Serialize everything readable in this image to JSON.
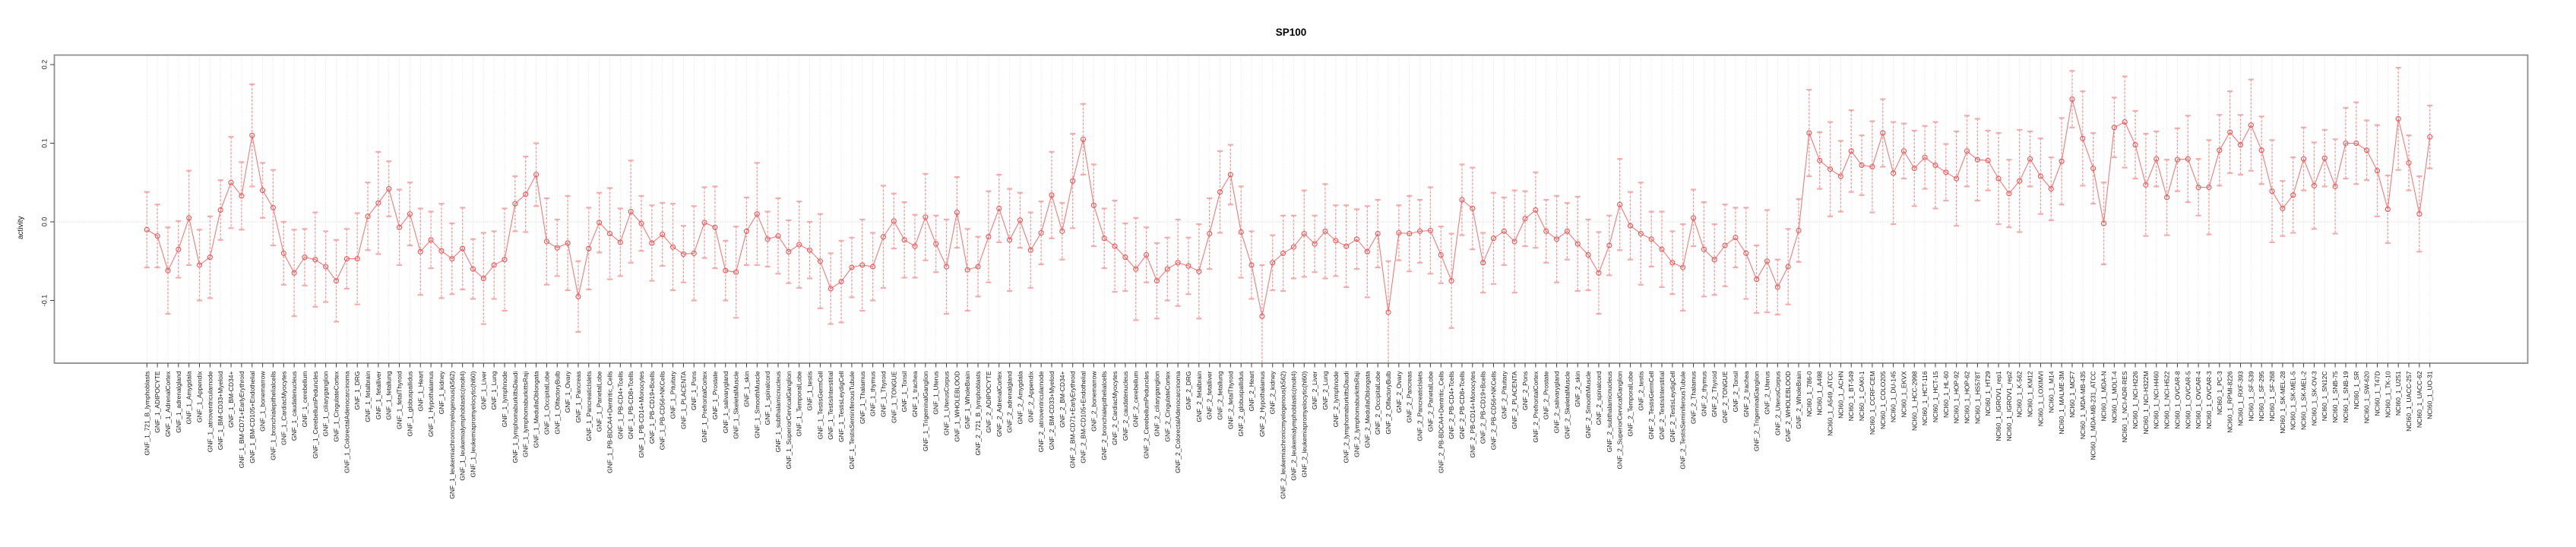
{
  "chart_data": {
    "type": "line",
    "title": "SP100",
    "ylabel": "activity",
    "xlabel": "",
    "legend": "none",
    "grid": "vertical dotted gridline per category; horizontal dotted line at 0 only",
    "ylim": [
      -0.18,
      0.213
    ],
    "yticks": [
      {
        "value": 0.2,
        "label": "0.2"
      },
      {
        "value": 0.1,
        "label": "0.1"
      },
      {
        "value": 0.0,
        "label": "0.0"
      },
      {
        "value": -0.1,
        "label": "-0.1"
      }
    ],
    "point_style": "open circles with dashed error-bar stems and capped whiskers, connected by thin line",
    "categories": [
      "GNF_1_721_B_lymphoblasts",
      "GNF_1_ADIPOCYTE",
      "GNF_1_AdrenalCortex",
      "GNF_1_adrenalgland",
      "GNF_1_Amygdala",
      "GNF_1_Appendix",
      "GNF_1_atrioventricularnode",
      "GNF_1_BM-CD33+Myeloid",
      "GNF_1_BM-CD34+",
      "GNF_1_BM-CD71+EarlyErythroid",
      "GNF_1_BM-CD105+Endothelial",
      "GNF_1_bonemarrow",
      "GNF_1_bronchialepithelialcells",
      "GNF_1_CardiacMyocytes",
      "GNF_1_caudatenucleus",
      "GNF_1_cerebellum",
      "GNF_1_CerebellumPeduncles",
      "GNF_1_ciliaryganglion",
      "GNF_1_CingulateCortex",
      "GNF_1_ColorectalAdenocarcinoma",
      "GNF_1_DRG",
      "GNF_1_fetalbrain",
      "GNF_1_fetalliver",
      "GNF_1_fetallung",
      "GNF_1_fetalThyroid",
      "GNF_1_globuspallidus",
      "GNF_1_Heart",
      "GNF_1_Hypothalamus",
      "GNF_1_kidney",
      "GNF_1_leukemiachronicmyelogenous(k562)",
      "GNF_1_leukemialymphoblastic(molt4)",
      "GNF_1_leukemiapromyelocytic(hl60)",
      "GNF_1_Liver",
      "GNF_1_Lung",
      "GNF_1_lymphnode",
      "GNF_1_lymphomaburkittsDaudi",
      "GNF_1_lymphomaburkittsRaji",
      "GNF_1_MedullaOblongata",
      "GNF_1_OccipitalLobe",
      "GNF_1_OlfactoryBulb",
      "GNF_1_Ovary",
      "GNF_1_Pancreas",
      "GNF_1_PancreaticIslets",
      "GNF_1_ParietalLobe",
      "GNF_1_PB-BDCA4+Dentritic_Cells",
      "GNF_1_PB-CD4+Tcells",
      "GNF_1_PB-CD8+Tcells",
      "GNF_1_PB-CD14+Monocytes",
      "GNF_1_PB-CD19+Bcells",
      "GNF_1_PB-CD56+NKCells",
      "GNF_1_Pituitary",
      "GNF_1_PLACENTA",
      "GNF_1_Pons",
      "GNF_1_PrefrontalCortex",
      "GNF_1_Prostate",
      "GNF_1_salivarygland",
      "GNF_1_SkeletalMuscle",
      "GNF_1_skin",
      "GNF_1_SmoothMuscle",
      "GNF_1_spinalcord",
      "GNF_1_subthalamicnucleus",
      "GNF_1_SuperiorCervicalGanglion",
      "GNF_1_TemporalLobe",
      "GNF_1_testis",
      "GNF_1_TestisGermCell",
      "GNF_1_TestisInterstitial",
      "GNF_1_TestisLeydigCell",
      "GNF_1_TestisSeminiferousTubule",
      "GNF_1_Thalamus",
      "GNF_1_thymus",
      "GNF_1_Thyroid",
      "GNF_1_TONGUE",
      "GNF_1_Tonsil",
      "GNF_1_trachea",
      "GNF_1_TrigeminalGanglion",
      "GNF_1_Uterus",
      "GNF_1_UterusCorpus",
      "GNF_1_WHOLEBLOOD",
      "GNF_1_WholeBrain",
      "GNF_2_721_B_lymphoblasts",
      "GNF_2_ADIPOCYTE",
      "GNF_2_AdrenalCortex",
      "GNF_2_adrenalgland",
      "GNF_2_Amygdala",
      "GNF_2_Appendix",
      "GNF_2_atrioventricularnode",
      "GNF_2_BM-CD33+Myeloid",
      "GNF_2_BM-CD34+",
      "GNF_2_BM-CD71+EarlyErythroid",
      "GNF_2_BM-CD105+Endothelial",
      "GNF_2_bonemarrow",
      "GNF_2_bronchialepithelialcells",
      "GNF_2_CardiacMyocytes",
      "GNF_2_caudatenucleus",
      "GNF_2_cerebellum",
      "GNF_2_CerebellumPeduncles",
      "GNF_2_ciliaryganglion",
      "GNF_2_CingulateCortex",
      "GNF_2_ColorectalAdenocarcinoma",
      "GNF_2_DRG",
      "GNF_2_fetalbrain",
      "GNF_2_fetalliver",
      "GNF_2_fetallung",
      "GNF_2_fetalThyroid",
      "GNF_2_globuspallidus",
      "GNF_2_Heart",
      "GNF_2_Hypothalamus",
      "GNF_2_kidney",
      "GNF_2_leukemiachronicmyelogenous(k562)",
      "GNF_2_leukemialymphoblastic(molt4)",
      "GNF_2_leukemiapromyelocytic(hl60)",
      "GNF_2_Liver",
      "GNF_2_Lung",
      "GNF_2_lymphnode",
      "GNF_2_lymphomaburkittsDaudi",
      "GNF_2_lymphomaburkittsRaji",
      "GNF_2_MedullaOblongata",
      "GNF_2_OccipitalLobe",
      "GNF_2_OlfactoryBulb",
      "GNF_2_Ovary",
      "GNF_2_Pancreas",
      "GNF_2_PancreaticIslets",
      "GNF_2_ParietalLobe",
      "GNF_2_PB-BDCA4+Dentritic_Cells",
      "GNF_2_PB-CD4+Tcells",
      "GNF_2_PB-CD8+Tcells",
      "GNF_2_PB-CD14+Monocytes",
      "GNF_2_PB-CD19+Bcells",
      "GNF_2_PB-CD56+NKCells",
      "GNF_2_Pituitary",
      "GNF_2_PLACENTA",
      "GNF_2_Pons",
      "GNF_2_PrefrontalCortex",
      "GNF_2_Prostate",
      "GNF_2_salivarygland",
      "GNF_2_SkeletalMuscle",
      "GNF_2_skin",
      "GNF_2_SmoothMuscle",
      "GNF_2_spinalcord",
      "GNF_2_subthalamicnucleus",
      "GNF_2_SuperiorCervicalGanglion",
      "GNF_2_TemporalLobe",
      "GNF_2_testis",
      "GNF_2_TestisGermCell",
      "GNF_2_TestisInterstitial",
      "GNF_2_TestisLeydigCell",
      "GNF_2_TestisSeminiferousTubule",
      "GNF_2_Thalamus",
      "GNF_2_thymus",
      "GNF_2_Thyroid",
      "GNF_2_TONGUE",
      "GNF_2_Tonsil",
      "GNF_2_trachea",
      "GNF_2_TrigeminalGanglion",
      "GNF_2_Uterus",
      "GNF_2_UterusCorpus",
      "GNF_2_WHOLEBLOOD",
      "GNF_2_WholeBrain",
      "NCI60_1_786-0",
      "NCI60_1_A498",
      "NCI60_1_A549_ATCC",
      "NCI60_1_ACHN",
      "NCI60_1_BT-549",
      "NCI60_1_CAKI-1",
      "NCI60_1_CCRF-CEM",
      "NCI60_1_COLO205",
      "NCI60_1_DU-145",
      "NCI60_1_EKVX",
      "NCI60_1_HCC-2998",
      "NCI60_1_HCT-116",
      "NCI60_1_HCT-15",
      "NCI60_1_HL-60",
      "NCI60_1_HOP-92",
      "NCI60_1_HOP-62",
      "NCI60_1_HS578T",
      "NCI60_1_HT29",
      "NCI60_1_IGROV1_rep1",
      "NCI60_1_IGROV1_rep2",
      "NCI60_1_K-562",
      "NCI60_1_KM12",
      "NCI60_1_LOXIMVI",
      "NCI60_1_M14",
      "NCI60_1_MALME-3M",
      "NCI60_1_MCF7",
      "NCI60_1_MDA-MB-435",
      "NCI60_1_MDA-MB-231_ATCC",
      "NCI60_1_MDA-N",
      "NCI60_1_MOLT-4",
      "NCI60_1_NCI-ADR-RES",
      "NCI60_1_NCI-H226",
      "NCI60_1_NCI-H322M",
      "NCI60_1_NCI-H460",
      "NCI60_1_NCI-H522",
      "NCI60_1_OVCAR-8",
      "NCI60_1_OVCAR-5",
      "NCI60_1_OVCAR-4",
      "NCI60_1_OVCAR-3",
      "NCI60_1_PC-3",
      "NCI60_1_RPMI-8226",
      "NCI60_1_RXF-393",
      "NCI60_1_SF-539",
      "NCI60_1_SF-295",
      "NCI60_1_SF-268",
      "NCI60_1_SK-MEL-28",
      "NCI60_1_SK-MEL-5",
      "NCI60_1_SK-MEL-2",
      "NCI60_1_SK-OV-3",
      "NCI60_1_SN12C",
      "NCI60_1_SNB-75",
      "NCI60_1_SNB-19",
      "NCI60_1_SR",
      "NCI60_1_SW-620",
      "NCI60_1_T47D",
      "NCI60_1_TK-10",
      "NCI60_1_U251",
      "NCI60_1_UACC-257",
      "NCI60_1_UACC-62",
      "NCI60_1_UO-31"
    ],
    "values": [
      -0.01,
      -0.018,
      -0.062,
      -0.035,
      0.005,
      -0.055,
      -0.045,
      0.015,
      0.05,
      0.033,
      0.11,
      0.04,
      0.018,
      -0.04,
      -0.065,
      -0.045,
      -0.048,
      -0.057,
      -0.075,
      -0.047,
      -0.047,
      0.007,
      0.024,
      0.042,
      -0.007,
      0.01,
      -0.038,
      -0.023,
      -0.037,
      -0.047,
      -0.034,
      -0.06,
      -0.072,
      -0.055,
      -0.048,
      0.023,
      0.035,
      0.06,
      -0.025,
      -0.033,
      -0.027,
      -0.095,
      -0.034,
      -0.001,
      -0.015,
      -0.026,
      0.013,
      -0.002,
      -0.027,
      -0.016,
      -0.032,
      -0.041,
      -0.04,
      -0.001,
      -0.007,
      -0.062,
      -0.064,
      -0.012,
      0.01,
      -0.022,
      -0.018,
      -0.038,
      -0.029,
      -0.036,
      -0.05,
      -0.085,
      -0.076,
      -0.058,
      -0.055,
      -0.057,
      -0.019,
      0.001,
      -0.023,
      -0.031,
      0.006,
      -0.028,
      -0.057,
      0.012,
      -0.061,
      -0.057,
      -0.019,
      0.017,
      -0.023,
      0.002,
      -0.036,
      -0.014,
      0.034,
      -0.012,
      0.052,
      0.105,
      0.021,
      -0.021,
      -0.031,
      -0.045,
      -0.06,
      -0.042,
      -0.075,
      -0.06,
      -0.052,
      -0.056,
      -0.063,
      -0.015,
      0.038,
      0.06,
      -0.013,
      -0.055,
      -0.12,
      -0.052,
      -0.04,
      -0.032,
      -0.015,
      -0.028,
      -0.012,
      -0.024,
      -0.031,
      -0.022,
      -0.038,
      -0.015,
      -0.115,
      -0.014,
      -0.015,
      -0.012,
      -0.011,
      -0.042,
      -0.075,
      0.028,
      0.017,
      -0.052,
      -0.021,
      -0.012,
      -0.025,
      0.004,
      0.015,
      -0.012,
      -0.022,
      -0.012,
      -0.028,
      -0.042,
      -0.065,
      -0.03,
      0.022,
      -0.005,
      -0.015,
      -0.022,
      -0.035,
      -0.052,
      -0.058,
      0.005,
      -0.035,
      -0.048,
      -0.03,
      -0.02,
      -0.04,
      -0.073,
      -0.05,
      -0.083,
      -0.057,
      -0.011,
      0.113,
      0.078,
      0.067,
      0.058,
      0.09,
      0.072,
      0.07,
      0.113,
      0.062,
      0.09,
      0.068,
      0.082,
      0.072,
      0.063,
      0.055,
      0.09,
      0.079,
      0.078,
      0.055,
      0.036,
      0.052,
      0.08,
      0.058,
      0.042,
      0.077,
      0.156,
      0.106,
      0.068,
      -0.002,
      0.12,
      0.127,
      0.098,
      0.047,
      0.08,
      0.031,
      0.079,
      0.08,
      0.044,
      0.044,
      0.091,
      0.114,
      0.098,
      0.123,
      0.091,
      0.039,
      0.017,
      0.034,
      0.08,
      0.046,
      0.081,
      0.045,
      0.1,
      0.1,
      0.091,
      0.065,
      0.016,
      0.131,
      0.075,
      0.01,
      0.108
    ],
    "errors": [
      0.048,
      0.04,
      0.055,
      0.036,
      0.06,
      0.045,
      0.052,
      0.038,
      0.058,
      0.043,
      0.065,
      0.035,
      0.048,
      0.04,
      0.055,
      0.036,
      0.06,
      0.045,
      0.052,
      0.038,
      0.058,
      0.043,
      0.065,
      0.035,
      0.048,
      0.04,
      0.055,
      0.036,
      0.06,
      0.045,
      0.052,
      0.038,
      0.058,
      0.043,
      0.065,
      0.035,
      0.048,
      0.04,
      0.055,
      0.036,
      0.06,
      0.045,
      0.052,
      0.038,
      0.058,
      0.043,
      0.065,
      0.035,
      0.048,
      0.04,
      0.055,
      0.036,
      0.06,
      0.045,
      0.052,
      0.038,
      0.058,
      0.043,
      0.065,
      0.035,
      0.048,
      0.04,
      0.055,
      0.036,
      0.06,
      0.045,
      0.052,
      0.038,
      0.058,
      0.043,
      0.065,
      0.035,
      0.048,
      0.04,
      0.055,
      0.036,
      0.06,
      0.045,
      0.052,
      0.038,
      0.058,
      0.043,
      0.065,
      0.035,
      0.048,
      0.04,
      0.055,
      0.036,
      0.06,
      0.045,
      0.052,
      0.038,
      0.058,
      0.043,
      0.065,
      0.035,
      0.048,
      0.04,
      0.055,
      0.036,
      0.06,
      0.045,
      0.052,
      0.038,
      0.058,
      0.043,
      0.065,
      0.035,
      0.048,
      0.04,
      0.055,
      0.036,
      0.06,
      0.045,
      0.052,
      0.038,
      0.058,
      0.043,
      0.065,
      0.035,
      0.048,
      0.04,
      0.055,
      0.036,
      0.06,
      0.045,
      0.052,
      0.038,
      0.058,
      0.043,
      0.065,
      0.035,
      0.048,
      0.04,
      0.055,
      0.036,
      0.06,
      0.045,
      0.052,
      0.038,
      0.058,
      0.043,
      0.065,
      0.035,
      0.048,
      0.04,
      0.055,
      0.036,
      0.06,
      0.045,
      0.052,
      0.038,
      0.058,
      0.043,
      0.065,
      0.035,
      0.048,
      0.04,
      0.055,
      0.036,
      0.06,
      0.045,
      0.052,
      0.038,
      0.058,
      0.043,
      0.065,
      0.035,
      0.048,
      0.04,
      0.055,
      0.036,
      0.06,
      0.045,
      0.052,
      0.038,
      0.058,
      0.043,
      0.065,
      0.035,
      0.048,
      0.04,
      0.055,
      0.036,
      0.06,
      0.045,
      0.052,
      0.038,
      0.058,
      0.043,
      0.065,
      0.035,
      0.048,
      0.04,
      0.055,
      0.036,
      0.06,
      0.045,
      0.052,
      0.038,
      0.058,
      0.043,
      0.065,
      0.035,
      0.048,
      0.04,
      0.055,
      0.036,
      0.06,
      0.045,
      0.052,
      0.038,
      0.058,
      0.043,
      0.065,
      0.035,
      0.048,
      0.04
    ],
    "colors": {
      "point": "#ef5252",
      "line": "#f26c6c",
      "errorbar": "#f08080",
      "errorbar_cap": "#f5a2a2",
      "grid": "#dcdcdc",
      "zero_line": "#c9c9c9",
      "panel_border": "#8e8e8e",
      "tick": "#404040",
      "label": "#1a1a1a",
      "title": "#000000"
    }
  }
}
